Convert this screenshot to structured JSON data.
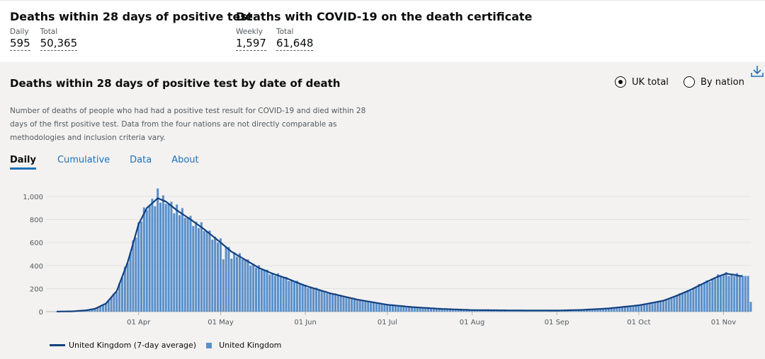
{
  "headline": [
    {
      "title": "Deaths within 28 days of positive test",
      "metrics": [
        {
          "label": "Daily",
          "value": "595"
        },
        {
          "label": "Total",
          "value": "50,365"
        }
      ]
    },
    {
      "title": "Deaths with COVID-19 on the death certificate",
      "metrics": [
        {
          "label": "Weekly",
          "value": "1,597"
        },
        {
          "label": "Total",
          "value": "61,648"
        }
      ]
    }
  ],
  "card": {
    "title": "Deaths within 28 days of positive test by date of death",
    "description": "Number of deaths of people who had had a positive test result for COVID-19 and died within 28 days of the first positive test. Data from the four nations are not directly comparable as methodologies and inclusion criteria vary.",
    "options": [
      {
        "label": "UK total",
        "selected": true
      },
      {
        "label": "By nation",
        "selected": false
      }
    ],
    "tabs": [
      {
        "label": "Daily",
        "active": true
      },
      {
        "label": "Cumulative",
        "active": false
      },
      {
        "label": "Data",
        "active": false
      },
      {
        "label": "About",
        "active": false
      }
    ],
    "download_icon": "download-icon"
  },
  "colors": {
    "bar": "#5b8fc9",
    "line": "#12407f",
    "grid": "#e1e1e1",
    "axis": "#b1b4b6",
    "tab_active": "#1d70b8"
  },
  "chart_data": {
    "type": "bar",
    "title": "Deaths within 28 days of positive test by date of death",
    "x_start": "2020-03-02",
    "x_end": "2020-11-11",
    "y_ticks": [
      0,
      200,
      400,
      600,
      800,
      1000
    ],
    "y_tick_labels": [
      "0",
      "200",
      "400",
      "600",
      "800",
      "1,000"
    ],
    "ylim": [
      0,
      1100
    ],
    "x_ticks": [
      {
        "date": "2020-04-01",
        "label": "01 Apr"
      },
      {
        "date": "2020-05-01",
        "label": "01 May"
      },
      {
        "date": "2020-06-01",
        "label": "01 Jun"
      },
      {
        "date": "2020-07-01",
        "label": "01 Jul"
      },
      {
        "date": "2020-08-01",
        "label": "01 Aug"
      },
      {
        "date": "2020-09-01",
        "label": "01 Sep"
      },
      {
        "date": "2020-10-01",
        "label": "01 Oct"
      },
      {
        "date": "2020-11-01",
        "label": "01 Nov"
      }
    ],
    "anchors": [
      [
        "2020-03-02",
        1
      ],
      [
        "2020-03-08",
        3
      ],
      [
        "2020-03-13",
        12
      ],
      [
        "2020-03-16",
        25
      ],
      [
        "2020-03-20",
        70
      ],
      [
        "2020-03-24",
        180
      ],
      [
        "2020-03-28",
        430
      ],
      [
        "2020-04-01",
        760
      ],
      [
        "2020-04-04",
        900
      ],
      [
        "2020-04-08",
        985
      ],
      [
        "2020-04-11",
        955
      ],
      [
        "2020-04-15",
        880
      ],
      [
        "2020-04-20",
        800
      ],
      [
        "2020-04-25",
        715
      ],
      [
        "2020-05-01",
        600
      ],
      [
        "2020-05-05",
        520
      ],
      [
        "2020-05-10",
        450
      ],
      [
        "2020-05-15",
        380
      ],
      [
        "2020-05-20",
        330
      ],
      [
        "2020-05-25",
        290
      ],
      [
        "2020-06-01",
        225
      ],
      [
        "2020-06-10",
        160
      ],
      [
        "2020-06-20",
        105
      ],
      [
        "2020-07-01",
        60
      ],
      [
        "2020-07-10",
        40
      ],
      [
        "2020-07-20",
        25
      ],
      [
        "2020-08-01",
        14
      ],
      [
        "2020-08-15",
        11
      ],
      [
        "2020-09-01",
        10
      ],
      [
        "2020-09-10",
        15
      ],
      [
        "2020-09-20",
        28
      ],
      [
        "2020-10-01",
        55
      ],
      [
        "2020-10-10",
        95
      ],
      [
        "2020-10-15",
        140
      ],
      [
        "2020-10-20",
        190
      ],
      [
        "2020-10-25",
        250
      ],
      [
        "2020-10-30",
        305
      ],
      [
        "2020-11-02",
        330
      ],
      [
        "2020-11-05",
        320
      ],
      [
        "2020-11-07",
        310
      ],
      [
        "2020-11-09",
        310
      ],
      [
        "2020-11-10",
        310
      ],
      [
        "2020-11-11",
        85
      ]
    ],
    "highlights": [
      [
        "2020-04-08",
        1070
      ],
      [
        "2020-04-10",
        1010
      ],
      [
        "2020-04-15",
        930
      ],
      [
        "2020-05-02",
        455
      ],
      [
        "2020-05-05",
        460
      ]
    ],
    "avg_end": "2020-11-08",
    "legend": [
      {
        "label": "United Kingdom (7-day average)",
        "kind": "line"
      },
      {
        "label": "United Kingdom",
        "kind": "bar"
      }
    ]
  }
}
